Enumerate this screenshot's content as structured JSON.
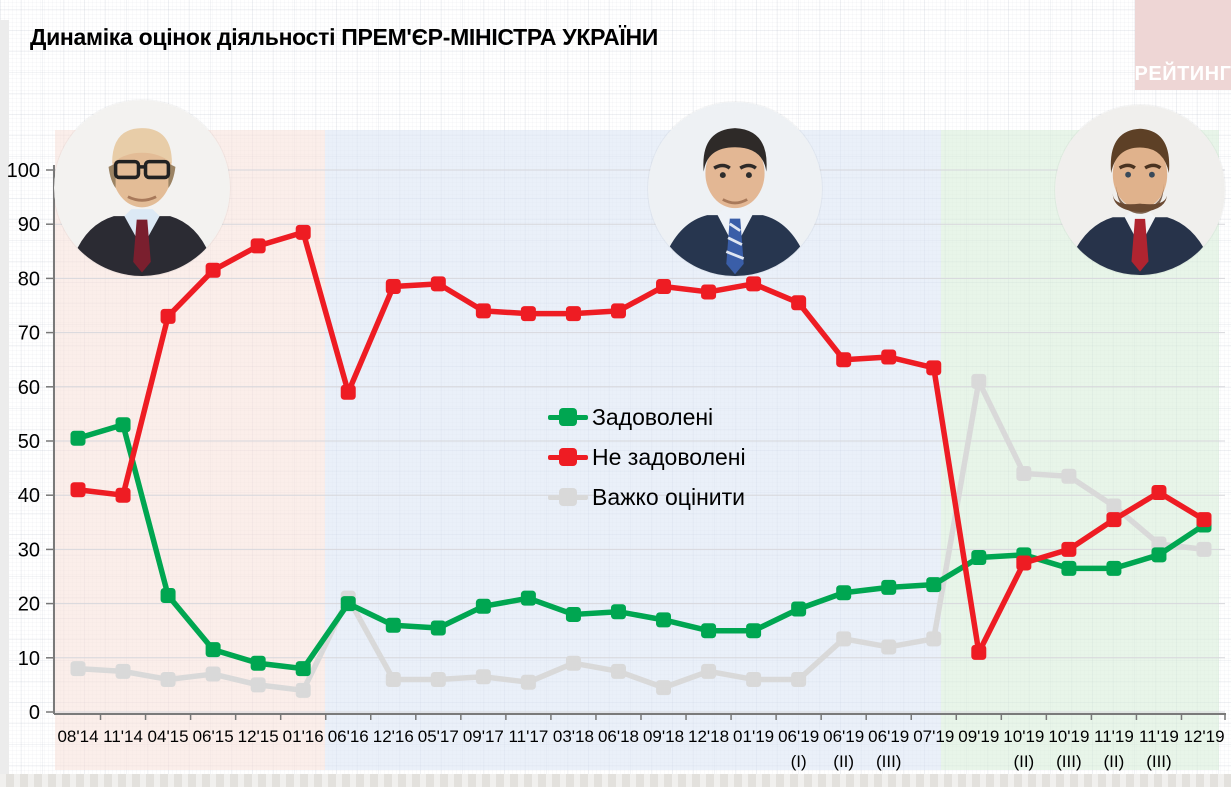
{
  "page": {
    "title": "Динаміка оцінок діяльності ПРЕМ'ЄР-МІНІСТРА УКРАЇНИ",
    "brand": "РЕЙТИНГ"
  },
  "chart_data": {
    "type": "line",
    "title": "Динаміка оцінок діяльності ПРЕМ'ЄР-МІНІСТРА УКРАЇНИ",
    "categories": [
      "08'14",
      "11'14",
      "04'15",
      "06'15",
      "12'15",
      "01'16",
      "06'16",
      "12'16",
      "05'17",
      "09'17",
      "11'17",
      "03'18",
      "06'18",
      "09'18",
      "12'18",
      "01'19",
      "06'19",
      "06'19",
      "06'19",
      "07'19",
      "09'19",
      "10'19",
      "10'19",
      "11'19",
      "11'19",
      "12'19"
    ],
    "category_sublabels": [
      "",
      "",
      "",
      "",
      "",
      "",
      "",
      "",
      "",
      "",
      "",
      "",
      "",
      "",
      "",
      "",
      "(I)",
      "(II)",
      "(III)",
      "",
      "",
      "(II)",
      "(III)",
      "(II)",
      "(III)",
      ""
    ],
    "series": [
      {
        "name": "Задоволені",
        "color": "#00a651",
        "values": [
          50.5,
          53,
          21.5,
          11.5,
          9,
          8,
          20,
          16,
          15.5,
          19.5,
          21,
          18,
          18.5,
          17,
          15,
          15,
          19,
          22,
          23,
          23.5,
          28.5,
          29,
          26.5,
          26.5,
          29,
          34.5
        ]
      },
      {
        "name": "Не задоволені",
        "color": "#ee1c23",
        "values": [
          41,
          40,
          73,
          81.5,
          86,
          88.5,
          59,
          78.5,
          79,
          74,
          73.5,
          73.5,
          74,
          78.5,
          77.5,
          79,
          75.5,
          65,
          65.5,
          63.5,
          11,
          27.5,
          30,
          35.5,
          40.5,
          35.5
        ]
      },
      {
        "name": "Важко оцінити",
        "color": "#d9d9d9",
        "values": [
          8,
          7.5,
          6,
          7,
          5,
          4,
          21,
          6,
          6,
          6.5,
          5.5,
          9,
          7.5,
          4.5,
          7.5,
          6,
          6,
          13.5,
          12,
          13.5,
          61,
          44,
          43.5,
          38,
          31,
          30
        ]
      }
    ],
    "ylim": [
      0,
      100
    ],
    "yticks": [
      0,
      10,
      20,
      30,
      40,
      50,
      60,
      70,
      80,
      90,
      100
    ],
    "grid": true,
    "legend_position": "center",
    "era_bands": [
      {
        "categories_from": "08'14",
        "categories_to": "01'16",
        "color": "#f7e0d8"
      },
      {
        "categories_from": "06'16",
        "categories_to": "07'19",
        "color": "#d8e4f4"
      },
      {
        "categories_from": "09'19",
        "categories_to": "12'19",
        "color": "#d5edd7"
      }
    ]
  }
}
